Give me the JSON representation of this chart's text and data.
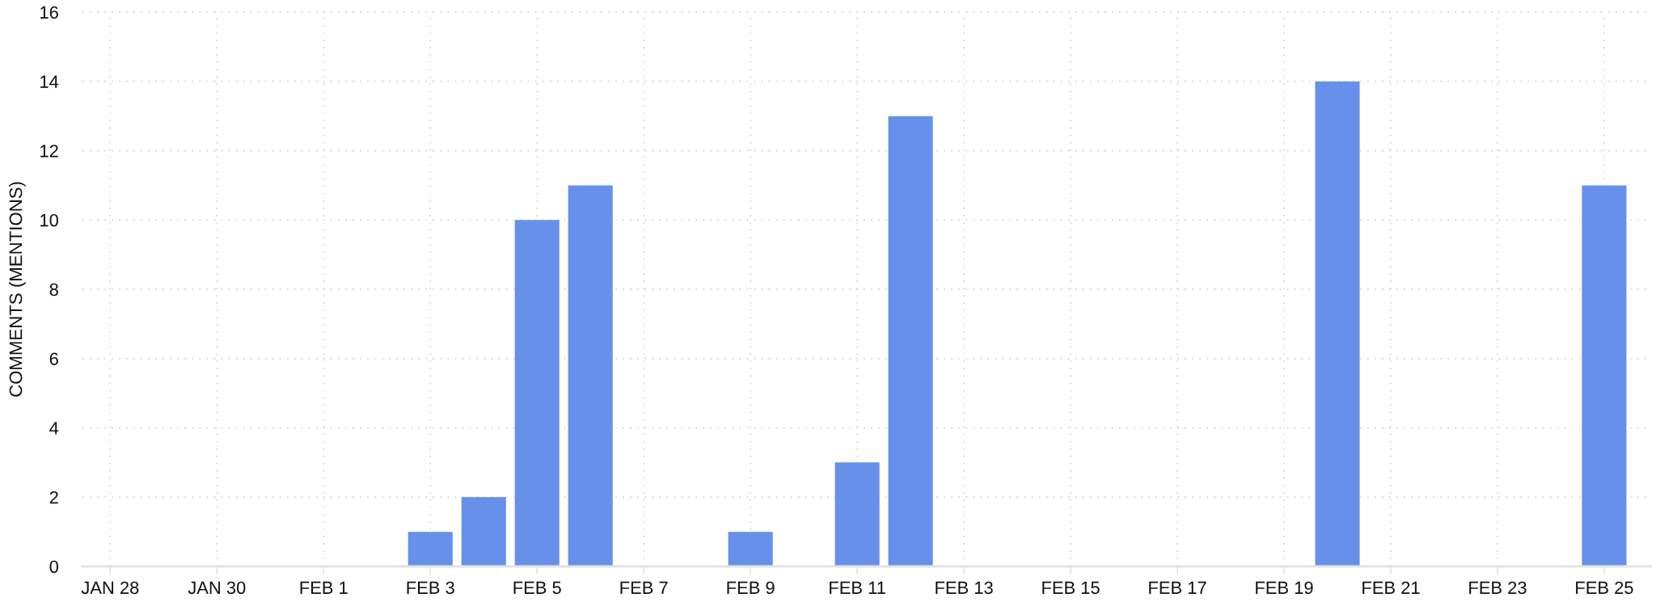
{
  "chart_data": {
    "type": "bar",
    "ylabel": "COMMENTS (MENTIONS)",
    "categories": [
      "JAN 28",
      null,
      "JAN 30",
      null,
      "FEB 1",
      null,
      "FEB 3",
      null,
      "FEB 5",
      null,
      "FEB 7",
      null,
      "FEB 9",
      null,
      "FEB 11",
      null,
      "FEB 13",
      null,
      "FEB 15",
      null,
      "FEB 17",
      null,
      "FEB 19",
      null,
      "FEB 21",
      null,
      "FEB 23",
      null,
      "FEB 25"
    ],
    "values": [
      null,
      null,
      null,
      null,
      null,
      null,
      1,
      2,
      10,
      11,
      null,
      null,
      1,
      null,
      3,
      13,
      null,
      null,
      null,
      null,
      null,
      null,
      null,
      14,
      null,
      null,
      null,
      null,
      11
    ],
    "color": "#6690ea",
    "ylim": [
      0,
      16
    ],
    "yticks": [
      0,
      2,
      4,
      6,
      8,
      10,
      12,
      14,
      16
    ],
    "grid": true,
    "legend": false
  }
}
